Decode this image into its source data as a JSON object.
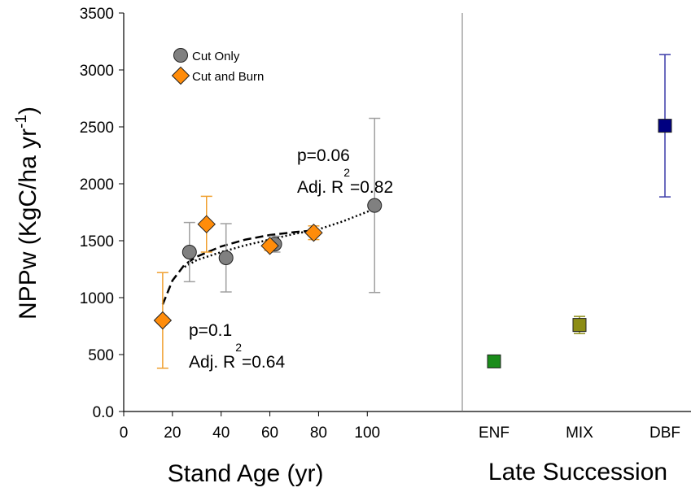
{
  "chart_data": [
    {
      "type": "scatter",
      "y_label": {
        "text": "NPPw (KgC/ha yr",
        "sup": "-1",
        "after": ")"
      },
      "x_label": "Stand Age (yr)",
      "xlim": [
        0,
        139
      ],
      "xticks": [
        0,
        20,
        40,
        60,
        80,
        100
      ],
      "ylim": [
        0,
        3500
      ],
      "yticks": [
        {
          "value": 0,
          "label": "0.0"
        },
        500,
        1000,
        1500,
        2000,
        2500,
        3000,
        3500
      ],
      "legend": "upper left",
      "series": [
        {
          "name": "Cut Only",
          "color": "#808080",
          "error_color": "#a0a0a0",
          "marker": "circle",
          "x": [
            27,
            42,
            62,
            103
          ],
          "values": [
            1400,
            1350,
            1470,
            1810
          ],
          "errors": [
            260,
            300,
            70,
            765
          ]
        },
        {
          "name": "Cut and Burn",
          "color": "#ff8c0a",
          "error_color": "#f0a030",
          "marker": "diamond",
          "x": [
            16,
            34,
            60,
            78
          ],
          "values": [
            800,
            1645,
            1455,
            1570
          ],
          "errors": [
            420,
            245,
            40,
            60
          ]
        }
      ],
      "fits": [
        {
          "style": "dashed",
          "x": [
            16,
            20,
            25,
            30,
            40,
            50,
            60,
            70,
            78
          ],
          "y": [
            940,
            1150,
            1290,
            1360,
            1450,
            1510,
            1550,
            1575,
            1590
          ]
        },
        {
          "style": "dotted",
          "x": [
            25,
            30,
            40,
            50,
            60,
            70,
            80,
            90,
            103
          ],
          "y": [
            1270,
            1330,
            1400,
            1460,
            1510,
            1560,
            1600,
            1670,
            1780
          ]
        }
      ],
      "annotations": [
        {
          "text": "p=0.06"
        },
        {
          "text": "Adj. R",
          "sup": "2",
          "after": "=0.82"
        },
        {
          "text": "p=0.1"
        },
        {
          "text": "Adj. R",
          "sup": "2",
          "after": "=0.64"
        }
      ]
    },
    {
      "type": "category",
      "x_label": "Late Succession",
      "ylim": [
        0,
        3500
      ],
      "categories": [
        "ENF",
        "MIX",
        "DBF"
      ],
      "values": [
        440,
        760,
        2510
      ],
      "errors": [
        null,
        75,
        625
      ],
      "colors": [
        "#1a8c1a",
        "#8c8c14",
        "#000080"
      ],
      "error_colors": [
        null,
        "#8c8c14",
        "#3a3aa8"
      ]
    }
  ]
}
